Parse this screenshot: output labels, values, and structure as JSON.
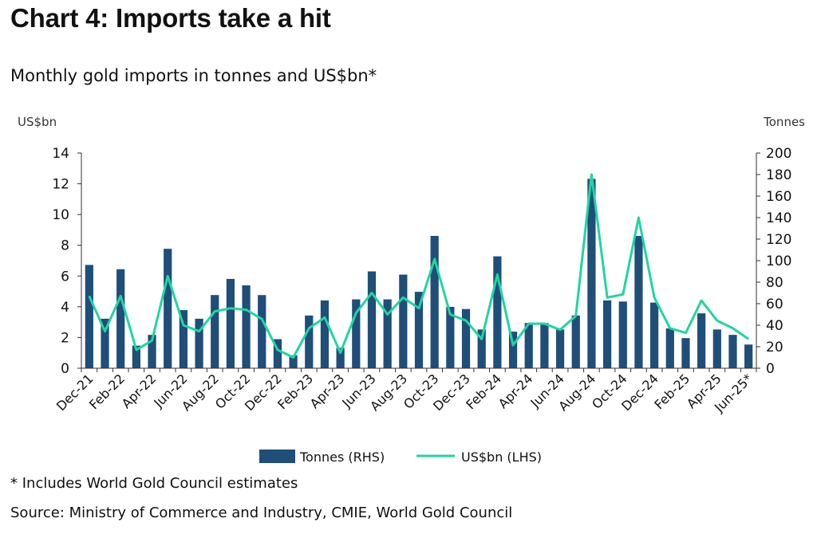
{
  "title": "Chart 4: Imports take a hit",
  "subtitle": "Monthly gold imports in tonnes and US$bn*",
  "footnote": "* Includes World Gold Council estimates",
  "source": "Source: Ministry of Commerce and Industry, CMIE, World Gold Council",
  "colors": {
    "bar": "#1f4e79",
    "line": "#1fd6a0",
    "axis": "#333333"
  },
  "chart_data": {
    "type": "bar",
    "left_axis_unit": "US$bn",
    "right_axis_unit": "Tonnes",
    "left_ylim": [
      0,
      14
    ],
    "left_ticks": [
      0,
      2,
      4,
      6,
      8,
      10,
      12,
      14
    ],
    "right_ylim": [
      0,
      200
    ],
    "right_ticks": [
      0,
      20,
      40,
      60,
      80,
      100,
      120,
      140,
      160,
      180,
      200
    ],
    "x_tick_labels": [
      "Dec-21",
      "Feb-22",
      "Apr-22",
      "Jun-22",
      "Aug-22",
      "Oct-22",
      "Dec-22",
      "Feb-23",
      "Apr-23",
      "Jun-23",
      "Aug-23",
      "Oct-23",
      "Dec-23",
      "Feb-24",
      "Apr-24",
      "Jun-24",
      "Aug-24",
      "Oct-24",
      "Dec-24",
      "Feb-25",
      "Apr-25",
      "Jun-25*"
    ],
    "months": [
      "Dec-21",
      "Jan-22",
      "Feb-22",
      "Mar-22",
      "Apr-22",
      "May-22",
      "Jun-22",
      "Jul-22",
      "Aug-22",
      "Sep-22",
      "Oct-22",
      "Nov-22",
      "Dec-22",
      "Jan-23",
      "Feb-23",
      "Mar-23",
      "Apr-23",
      "May-23",
      "Jun-23",
      "Jul-23",
      "Aug-23",
      "Sep-23",
      "Oct-23",
      "Nov-23",
      "Dec-23",
      "Jan-24",
      "Feb-24",
      "Mar-24",
      "Apr-24",
      "May-24",
      "Jun-24",
      "Jul-24",
      "Aug-24",
      "Sep-24",
      "Oct-24",
      "Nov-24",
      "Dec-24",
      "Jan-25",
      "Feb-25",
      "Mar-25",
      "Apr-25",
      "May-25",
      "Jun-25*"
    ],
    "series": [
      {
        "name": "Tonnes (RHS)",
        "type": "bar",
        "axis": "right",
        "values": [
          96,
          46,
          92,
          21,
          31,
          111,
          54,
          46,
          68,
          83,
          77,
          68,
          27,
          12,
          49,
          63,
          19,
          64,
          90,
          64,
          87,
          71,
          123,
          57,
          55,
          36,
          104,
          34,
          42,
          42,
          36,
          49,
          176,
          63,
          62,
          123,
          61,
          37,
          28,
          51,
          36,
          31,
          22
        ]
      },
      {
        "name": "US$bn (LHS)",
        "type": "line",
        "axis": "left",
        "values": [
          4.7,
          2.4,
          4.7,
          1.2,
          1.8,
          6.0,
          2.8,
          2.4,
          3.7,
          3.9,
          3.8,
          3.2,
          1.2,
          0.7,
          2.6,
          3.3,
          1.0,
          3.6,
          4.9,
          3.5,
          4.6,
          3.9,
          7.1,
          3.5,
          3.1,
          1.9,
          6.1,
          1.5,
          2.9,
          2.9,
          2.5,
          3.4,
          12.6,
          4.6,
          4.8,
          9.8,
          4.6,
          2.6,
          2.3,
          4.4,
          3.1,
          2.6,
          1.9
        ]
      }
    ],
    "legend_position": "bottom"
  }
}
